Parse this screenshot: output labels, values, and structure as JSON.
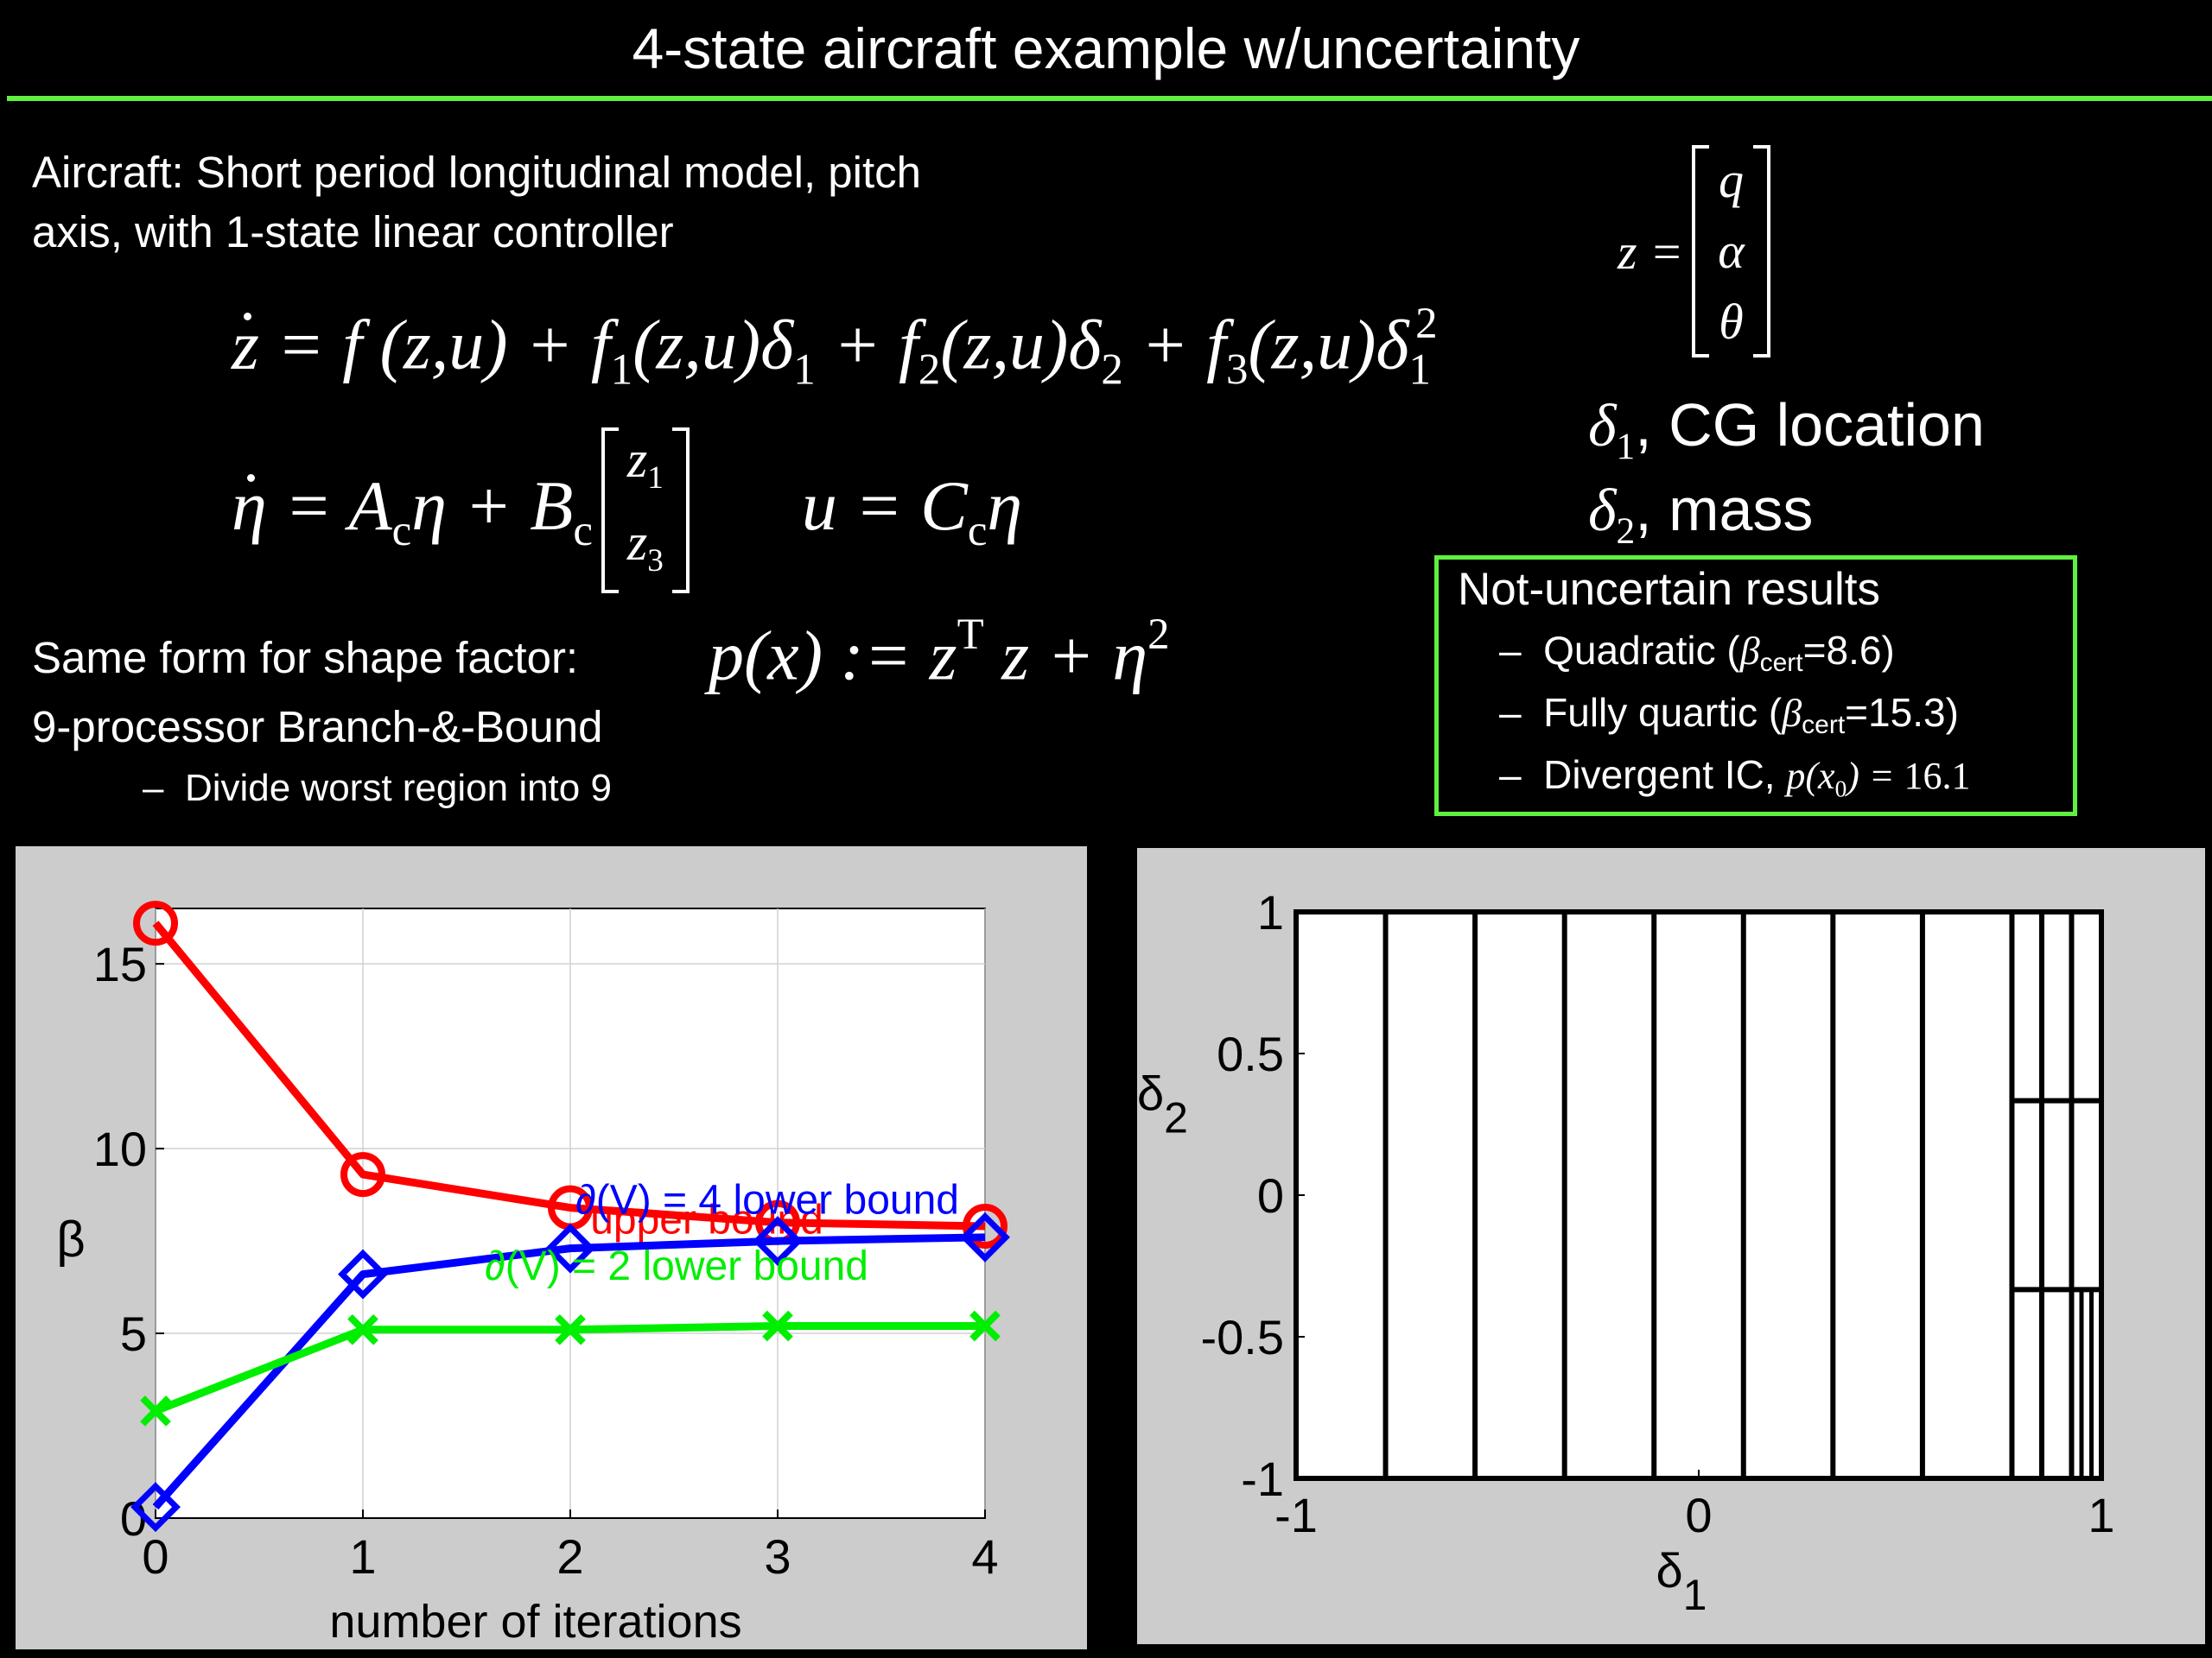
{
  "slide": {
    "title": "4-state aircraft example w/uncertainty",
    "aircraft_line1": "Aircraft: Short period longitudinal model, pitch",
    "aircraft_line2": "axis, with 1-state linear controller",
    "shape_factor_label": "Same form for shape factor:",
    "bnb_label": "9-processor Branch-&-Bound",
    "bnb_bullet": "Divide worst region into 9",
    "bullet_dash": "–",
    "delta1_label": "CG location",
    "delta2_label": "mass"
  },
  "equations": {
    "state_vector": [
      "q",
      "α",
      "θ"
    ],
    "controller_vector": [
      "z1",
      "z3"
    ]
  },
  "results_box": {
    "heading": "Not-uncertain results",
    "items": [
      {
        "prefix": "Quadratic (",
        "sub": "cert",
        "suffix": "=8.6)"
      },
      {
        "prefix": "Fully quartic (",
        "sub": "cert",
        "suffix": "=15.3)"
      },
      {
        "prefix": "Divergent IC, ",
        "value": "16.1"
      }
    ]
  },
  "chart_data": [
    {
      "type": "line",
      "xlabel": "number of iterations",
      "ylabel": "β",
      "x": [
        0,
        1,
        2,
        3,
        4
      ],
      "xlim": [
        0,
        4
      ],
      "ylim": [
        0,
        16.5
      ],
      "xticks": [
        "0",
        "1",
        "2",
        "3",
        "4"
      ],
      "yticks": [
        "0",
        "5",
        "10",
        "15"
      ],
      "grid": true,
      "series": [
        {
          "name": "upper bound",
          "color": "#ff0000",
          "marker": "circle",
          "values": [
            16.1,
            9.3,
            8.4,
            8.0,
            7.9
          ]
        },
        {
          "name": "∂(V) = 4 lower bound",
          "color": "#0000ff",
          "marker": "diamond",
          "values": [
            0.3,
            6.6,
            7.3,
            7.5,
            7.6
          ]
        },
        {
          "name": "∂(V) = 2 lower bound",
          "color": "#00ee00",
          "marker": "x",
          "values": [
            2.9,
            5.1,
            5.1,
            5.2,
            5.2
          ]
        }
      ]
    },
    {
      "type": "diagram",
      "xlabel": "δ1",
      "ylabel": "δ2",
      "xlim": [
        -1,
        1
      ],
      "ylim": [
        -1,
        1
      ],
      "xticks": [
        "-1",
        "0",
        "1"
      ],
      "yticks": [
        "-1",
        "-0.5",
        "0",
        "0.5",
        "1"
      ],
      "vertical_divisions": [
        -0.7778,
        -0.5556,
        -0.3333,
        -0.1111,
        0.1111,
        0.3333,
        0.5556,
        0.7778,
        0.8519,
        0.9259
      ],
      "right_strip": {
        "x0": 0.7778,
        "x1": 1.0,
        "horizontal_divisions": [
          0.3333,
          -0.3333
        ]
      },
      "fine_region": {
        "x0": 0.9259,
        "x1": 1.0,
        "y0": -1.0,
        "y1": -0.3333,
        "divisions": [
          0.9506,
          0.9753
        ]
      }
    }
  ]
}
